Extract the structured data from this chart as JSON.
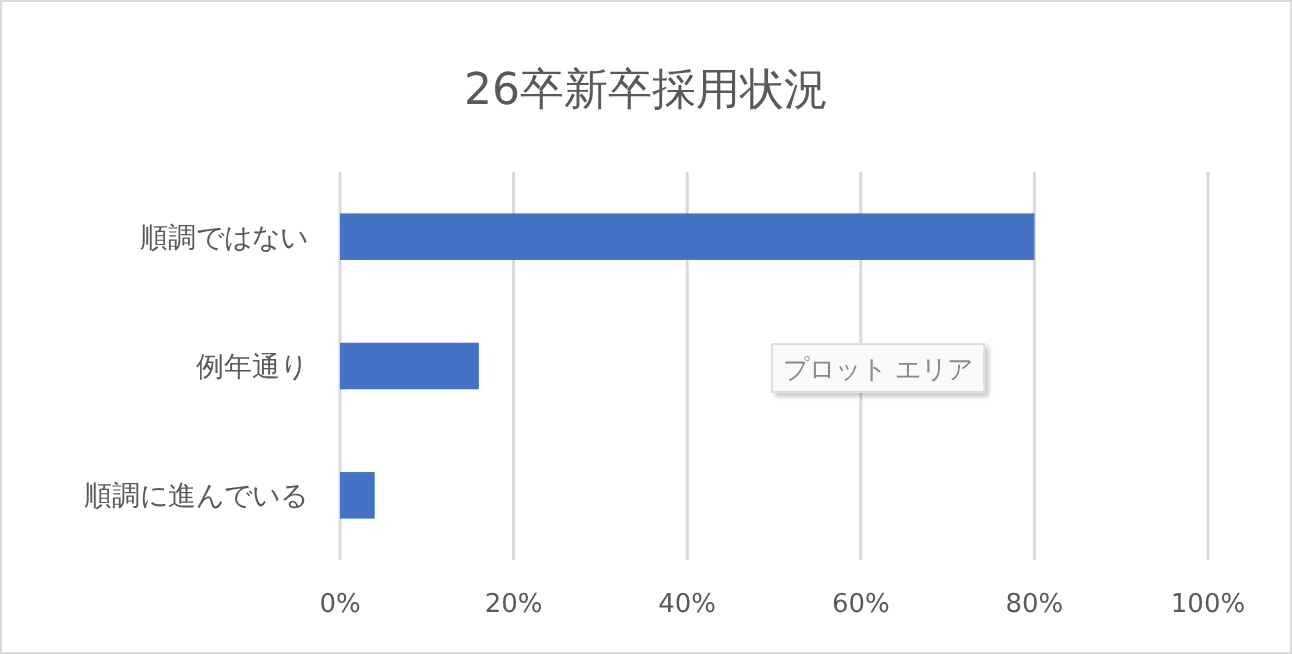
{
  "chart_data": {
    "type": "bar",
    "orientation": "horizontal",
    "title": "26卒新卒採用状況",
    "categories": [
      "順調ではない",
      "例年通り",
      "順調に進んでいる"
    ],
    "values": [
      80,
      16,
      4
    ],
    "color": "#4472c4",
    "xlim": [
      0,
      100
    ],
    "xticks": [
      {
        "value": 0,
        "label": "0%"
      },
      {
        "value": 20,
        "label": "20%"
      },
      {
        "value": 40,
        "label": "40%"
      },
      {
        "value": 60,
        "label": "60%"
      },
      {
        "value": 80,
        "label": "80%"
      },
      {
        "value": 100,
        "label": "100%"
      }
    ],
    "grid": "x",
    "annotations": [
      "プロット エリア"
    ]
  }
}
